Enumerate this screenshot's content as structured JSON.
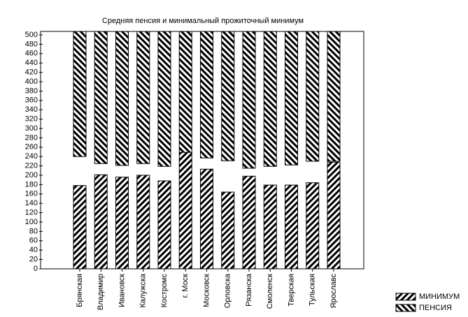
{
  "chart_data": {
    "type": "bar",
    "title": "Средняя пенсия и минимальный прожиточный минимум",
    "categories": [
      "Брянская",
      "Владимир",
      "Ивановск",
      "Калужска",
      "Костромс",
      "г. Моск",
      "Московск",
      "Орловска",
      "Рязанска",
      "Смоленск",
      "Тверская",
      "Тульская",
      "Ярославс"
    ],
    "series": [
      {
        "name": "МИНИМУМ",
        "color": "#000000",
        "hatch": "/",
        "values": [
          178,
          201,
          196,
          200,
          188,
          249,
          213,
          164,
          198,
          179,
          179,
          184,
          228
        ]
      },
      {
        "name": "ПЕНСИЯ",
        "color": "#000000",
        "hatch": "\\",
        "values": [
          240,
          225,
          221,
          225,
          219,
          249,
          237,
          231,
          215,
          219,
          222,
          230,
          230
        ]
      }
    ],
    "ylim": [
      0,
      500
    ],
    "yticks": [
      0,
      20,
      40,
      60,
      80,
      100,
      120,
      140,
      160,
      180,
      200,
      220,
      240,
      260,
      280,
      300,
      320,
      340,
      360,
      380,
      400,
      420,
      440,
      460,
      480,
      500
    ],
    "legend": "bottom-right"
  }
}
